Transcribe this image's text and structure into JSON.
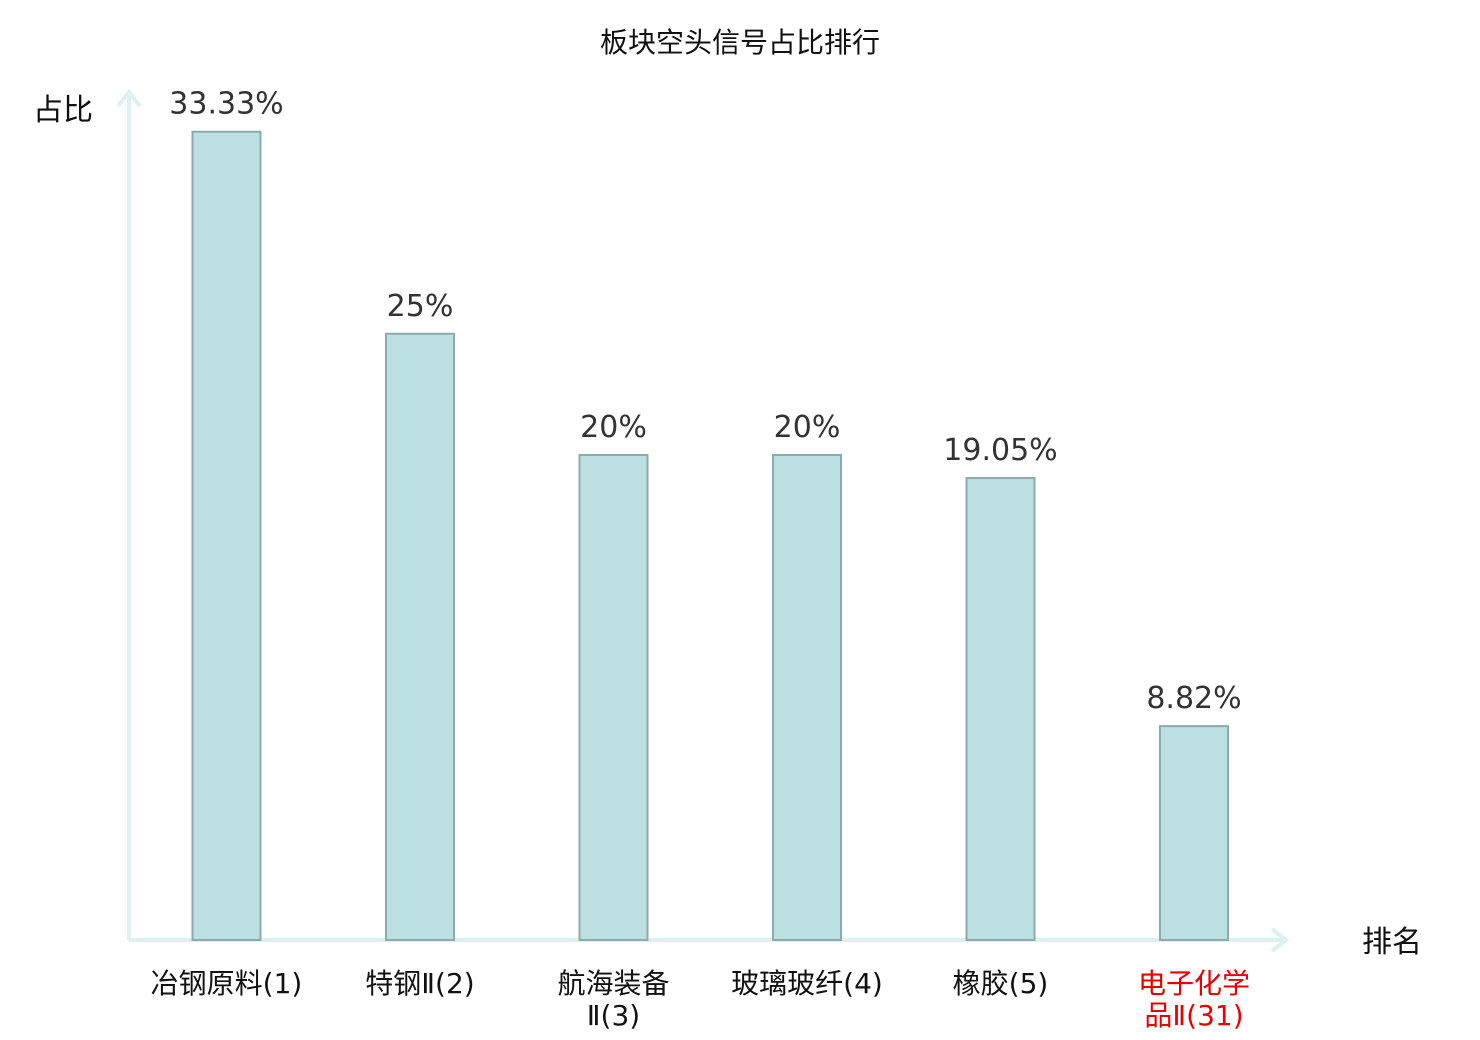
{
  "chart_data": {
    "type": "bar",
    "title": "板块空头信号占比排行",
    "ylabel": "占比",
    "xlabel": "排名",
    "ylim": [
      0,
      35
    ],
    "grid": false,
    "legend": "none",
    "categories": [
      {
        "name": "冶钢原料",
        "rank": "(1)",
        "highlight": false
      },
      {
        "name": "特钢Ⅱ",
        "rank": "(2)",
        "highlight": false
      },
      {
        "name": "航海装备Ⅱ",
        "rank": "(3)",
        "highlight": false
      },
      {
        "name": "玻璃玻纤",
        "rank": "(4)",
        "highlight": false
      },
      {
        "name": "橡胶",
        "rank": "(5)",
        "highlight": false
      },
      {
        "name": "电子化学品Ⅱ",
        "rank": "(31)",
        "highlight": true
      }
    ],
    "values": [
      33.33,
      25,
      20,
      20,
      19.05,
      8.82
    ],
    "value_labels": [
      "33.33%",
      "25%",
      "20%",
      "20%",
      "19.05%",
      "8.82%"
    ],
    "colors": {
      "bar_fill": "#bce0e2",
      "bar_stroke": "#8faaac",
      "axis": "#dff1ee",
      "highlight_text": "#e60000"
    }
  }
}
